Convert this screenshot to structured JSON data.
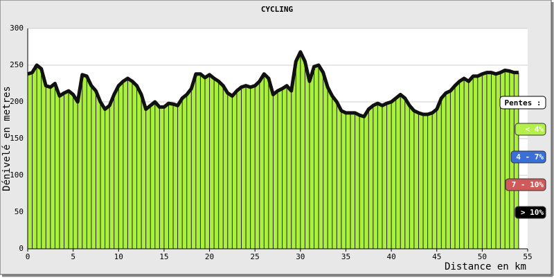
{
  "chart_data": {
    "type": "area",
    "title": "CYCLING",
    "x_label": "Distance en km",
    "y_label": "Dénivelé en metres",
    "x": [
      0,
      0.5,
      1,
      1.5,
      2,
      2.5,
      3,
      3.5,
      4,
      4.5,
      5,
      5.5,
      6,
      6.5,
      7,
      7.5,
      8,
      8.5,
      9,
      9.5,
      10,
      10.5,
      11,
      11.5,
      12,
      12.5,
      13,
      13.5,
      14,
      14.5,
      15,
      15.5,
      16,
      16.5,
      17,
      17.5,
      18,
      18.5,
      19,
      19.5,
      20,
      20.5,
      21,
      21.5,
      22,
      22.5,
      23,
      23.5,
      24,
      24.5,
      25,
      25.5,
      26,
      26.5,
      27,
      27.5,
      28,
      28.5,
      29,
      29.5,
      30,
      30.5,
      31,
      31.5,
      32,
      32.5,
      33,
      33.5,
      34,
      34.5,
      35,
      35.5,
      36,
      36.5,
      37,
      37.5,
      38,
      38.5,
      39,
      39.5,
      40,
      40.5,
      41,
      41.5,
      42,
      42.5,
      43,
      43.5,
      44,
      44.5,
      45,
      45.5,
      46,
      46.5,
      47,
      47.5,
      48,
      48.5,
      49,
      49.5,
      50,
      50.5,
      51,
      51.5,
      52,
      52.5,
      53,
      53.5,
      54
    ],
    "series": [
      {
        "color": "#aaf03c",
        "values": [
          238,
          240,
          250,
          245,
          222,
          220,
          225,
          208,
          212,
          215,
          210,
          200,
          237,
          235,
          222,
          215,
          200,
          190,
          195,
          210,
          222,
          228,
          232,
          228,
          222,
          210,
          190,
          195,
          200,
          193,
          193,
          198,
          197,
          195,
          205,
          210,
          218,
          238,
          238,
          233,
          237,
          232,
          228,
          222,
          212,
          208,
          215,
          220,
          222,
          220,
          222,
          228,
          238,
          232,
          210,
          215,
          218,
          222,
          215,
          255,
          268,
          255,
          228,
          248,
          250,
          240,
          220,
          208,
          200,
          188,
          185,
          185,
          185,
          182,
          180,
          190,
          195,
          198,
          195,
          198,
          200,
          205,
          210,
          205,
          195,
          188,
          185,
          183,
          183,
          185,
          190,
          205,
          212,
          215,
          222,
          228,
          232,
          228,
          235,
          235,
          238,
          240,
          240,
          238,
          240,
          243,
          242,
          240,
          240
        ]
      }
    ],
    "xlim": [
      0,
      55
    ],
    "ylim": [
      0,
      300
    ],
    "xticks": [
      0,
      5,
      10,
      15,
      20,
      25,
      30,
      35,
      40,
      45,
      50,
      55
    ],
    "yticks": [
      0,
      50,
      100,
      150,
      200,
      250,
      300
    ],
    "grid": true,
    "legend": {
      "title": "Pentes :",
      "items": [
        {
          "label": "< 4%",
          "color": "#b4f04a"
        },
        {
          "label": "4 - 7%",
          "color": "#3a6fd8"
        },
        {
          "label": "7 - 10%",
          "color": "#d05a5a"
        },
        {
          "label": "> 10%",
          "color": "#000000"
        }
      ]
    }
  }
}
